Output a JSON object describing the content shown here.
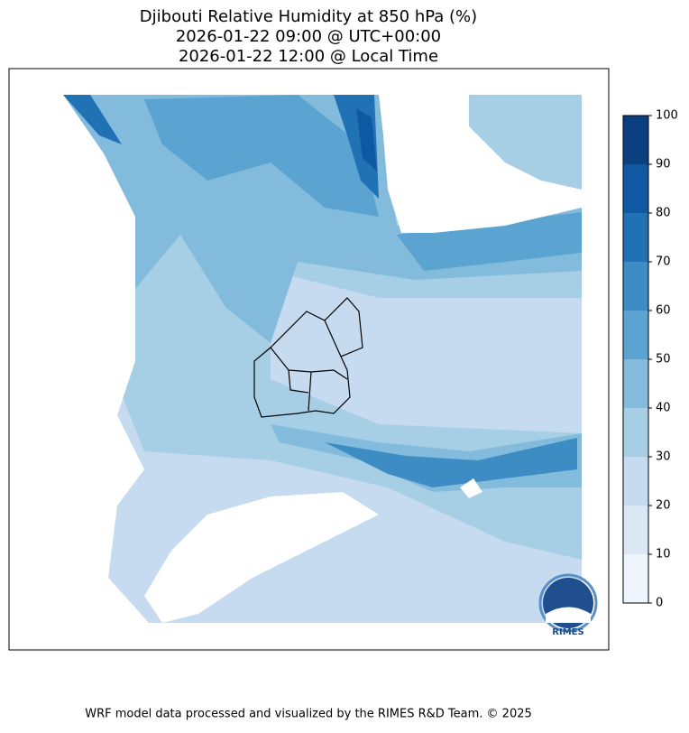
{
  "title": [
    "Djibouti Relative Humidity at 850 hPa (%)",
    "2026-01-22 09:00 @ UTC+00:00",
    "2026-01-22 12:00 @ Local Time"
  ],
  "colorbar": {
    "ticks": [
      0,
      10,
      20,
      30,
      40,
      50,
      60,
      70,
      80,
      90,
      100
    ],
    "colors": [
      "#eef5fc",
      "#dae8f6",
      "#c6dbef",
      "#a6cee4",
      "#82bbdb",
      "#5ba3d0",
      "#3d8dc4",
      "#2171b5",
      "#0f59a3",
      "#0a3f80"
    ]
  },
  "logo": "RIMES",
  "footer": "WRF model data processed and visualized by the RIMES R&D Team. © 2025"
}
